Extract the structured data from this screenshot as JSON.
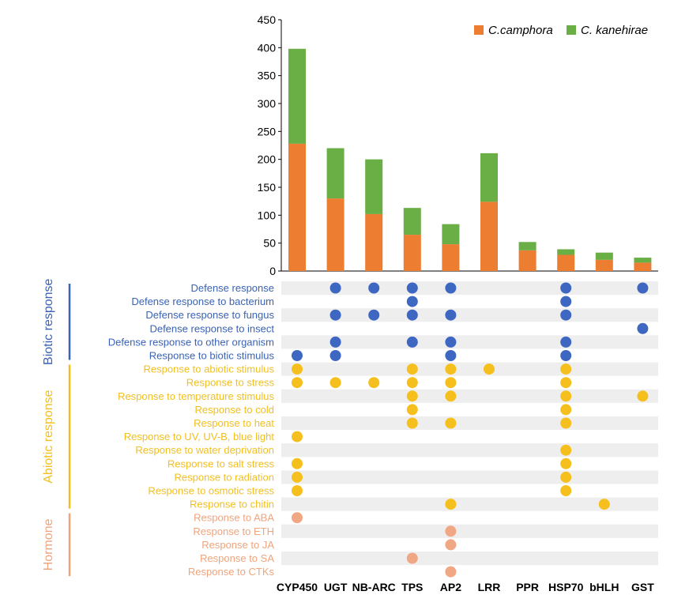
{
  "chart_data": {
    "type": "bar",
    "stacked": true,
    "categories": [
      "CYP450",
      "UGT",
      "NB-ARC",
      "TPS",
      "AP2",
      "LRR",
      "PPR",
      "HSP70",
      "bHLH",
      "GST"
    ],
    "series": [
      {
        "name": "C.camphora",
        "color": "#ed7d31",
        "values": [
          228,
          130,
          102,
          65,
          48,
          124,
          37,
          29,
          20,
          15
        ]
      },
      {
        "name": "C. kanehirae",
        "color": "#6aaf45",
        "values": [
          170,
          90,
          98,
          48,
          36,
          87,
          15,
          10,
          13,
          9
        ]
      }
    ],
    "ylim": [
      0,
      450
    ],
    "yticks": [
      0,
      50,
      100,
      150,
      200,
      250,
      300,
      350,
      400,
      450
    ],
    "legend": {
      "position": "top-right",
      "entries": [
        "C.camphora",
        "C. kanehirae"
      ]
    },
    "groups": [
      {
        "name": "Biotic response",
        "color": "#3a62b4",
        "dot_color": "#3e67c2"
      },
      {
        "name": "Abiotic response",
        "color": "#f2bf1f",
        "dot_color": "#f5bf1d"
      },
      {
        "name": "Hormone",
        "color": "#efa47c",
        "dot_color": "#f0a783"
      }
    ],
    "go_terms": [
      {
        "label": "Defense response",
        "group": 0,
        "dots": [
          1,
          2,
          3,
          4,
          7,
          9
        ]
      },
      {
        "label": "Defense response to bacterium",
        "group": 0,
        "dots": [
          3,
          7
        ]
      },
      {
        "label": "Defense response to fungus",
        "group": 0,
        "dots": [
          1,
          2,
          3,
          4,
          7
        ]
      },
      {
        "label": "Defense response to insect",
        "group": 0,
        "dots": [
          9
        ]
      },
      {
        "label": "Defense response to other organism",
        "group": 0,
        "dots": [
          1,
          3,
          4,
          7
        ]
      },
      {
        "label": "Response to biotic stimulus",
        "group": 0,
        "dots": [
          0,
          1,
          4,
          7
        ]
      },
      {
        "label": "Response to abiotic stimulus",
        "group": 1,
        "dots": [
          0,
          3,
          4,
          5,
          7
        ]
      },
      {
        "label": "Response to stress",
        "group": 1,
        "dots": [
          0,
          1,
          2,
          3,
          4,
          7
        ]
      },
      {
        "label": "Response to temperature stimulus",
        "group": 1,
        "dots": [
          3,
          4,
          7,
          9
        ]
      },
      {
        "label": "Response to cold",
        "group": 1,
        "dots": [
          3,
          7
        ]
      },
      {
        "label": "Response to heat",
        "group": 1,
        "dots": [
          3,
          4,
          7
        ]
      },
      {
        "label": "Response to UV, UV-B, blue light",
        "group": 1,
        "dots": [
          0
        ]
      },
      {
        "label": "Response to water deprivation",
        "group": 1,
        "dots": [
          7
        ]
      },
      {
        "label": "Response to salt stress",
        "group": 1,
        "dots": [
          0,
          7
        ]
      },
      {
        "label": "Response to radiation",
        "group": 1,
        "dots": [
          0,
          7
        ]
      },
      {
        "label": "Response to osmotic stress",
        "group": 1,
        "dots": [
          0,
          7
        ]
      },
      {
        "label": "Response to chitin",
        "group": 1,
        "dots": [
          4,
          8
        ]
      },
      {
        "label": "Response to ABA",
        "group": 2,
        "dots": [
          0
        ]
      },
      {
        "label": "Response to ETH",
        "group": 2,
        "dots": [
          4
        ]
      },
      {
        "label": "Response to JA",
        "group": 2,
        "dots": [
          4
        ]
      },
      {
        "label": "Response to SA",
        "group": 2,
        "dots": [
          3
        ]
      },
      {
        "label": "Response to CTKs",
        "group": 2,
        "dots": [
          4
        ]
      }
    ]
  }
}
